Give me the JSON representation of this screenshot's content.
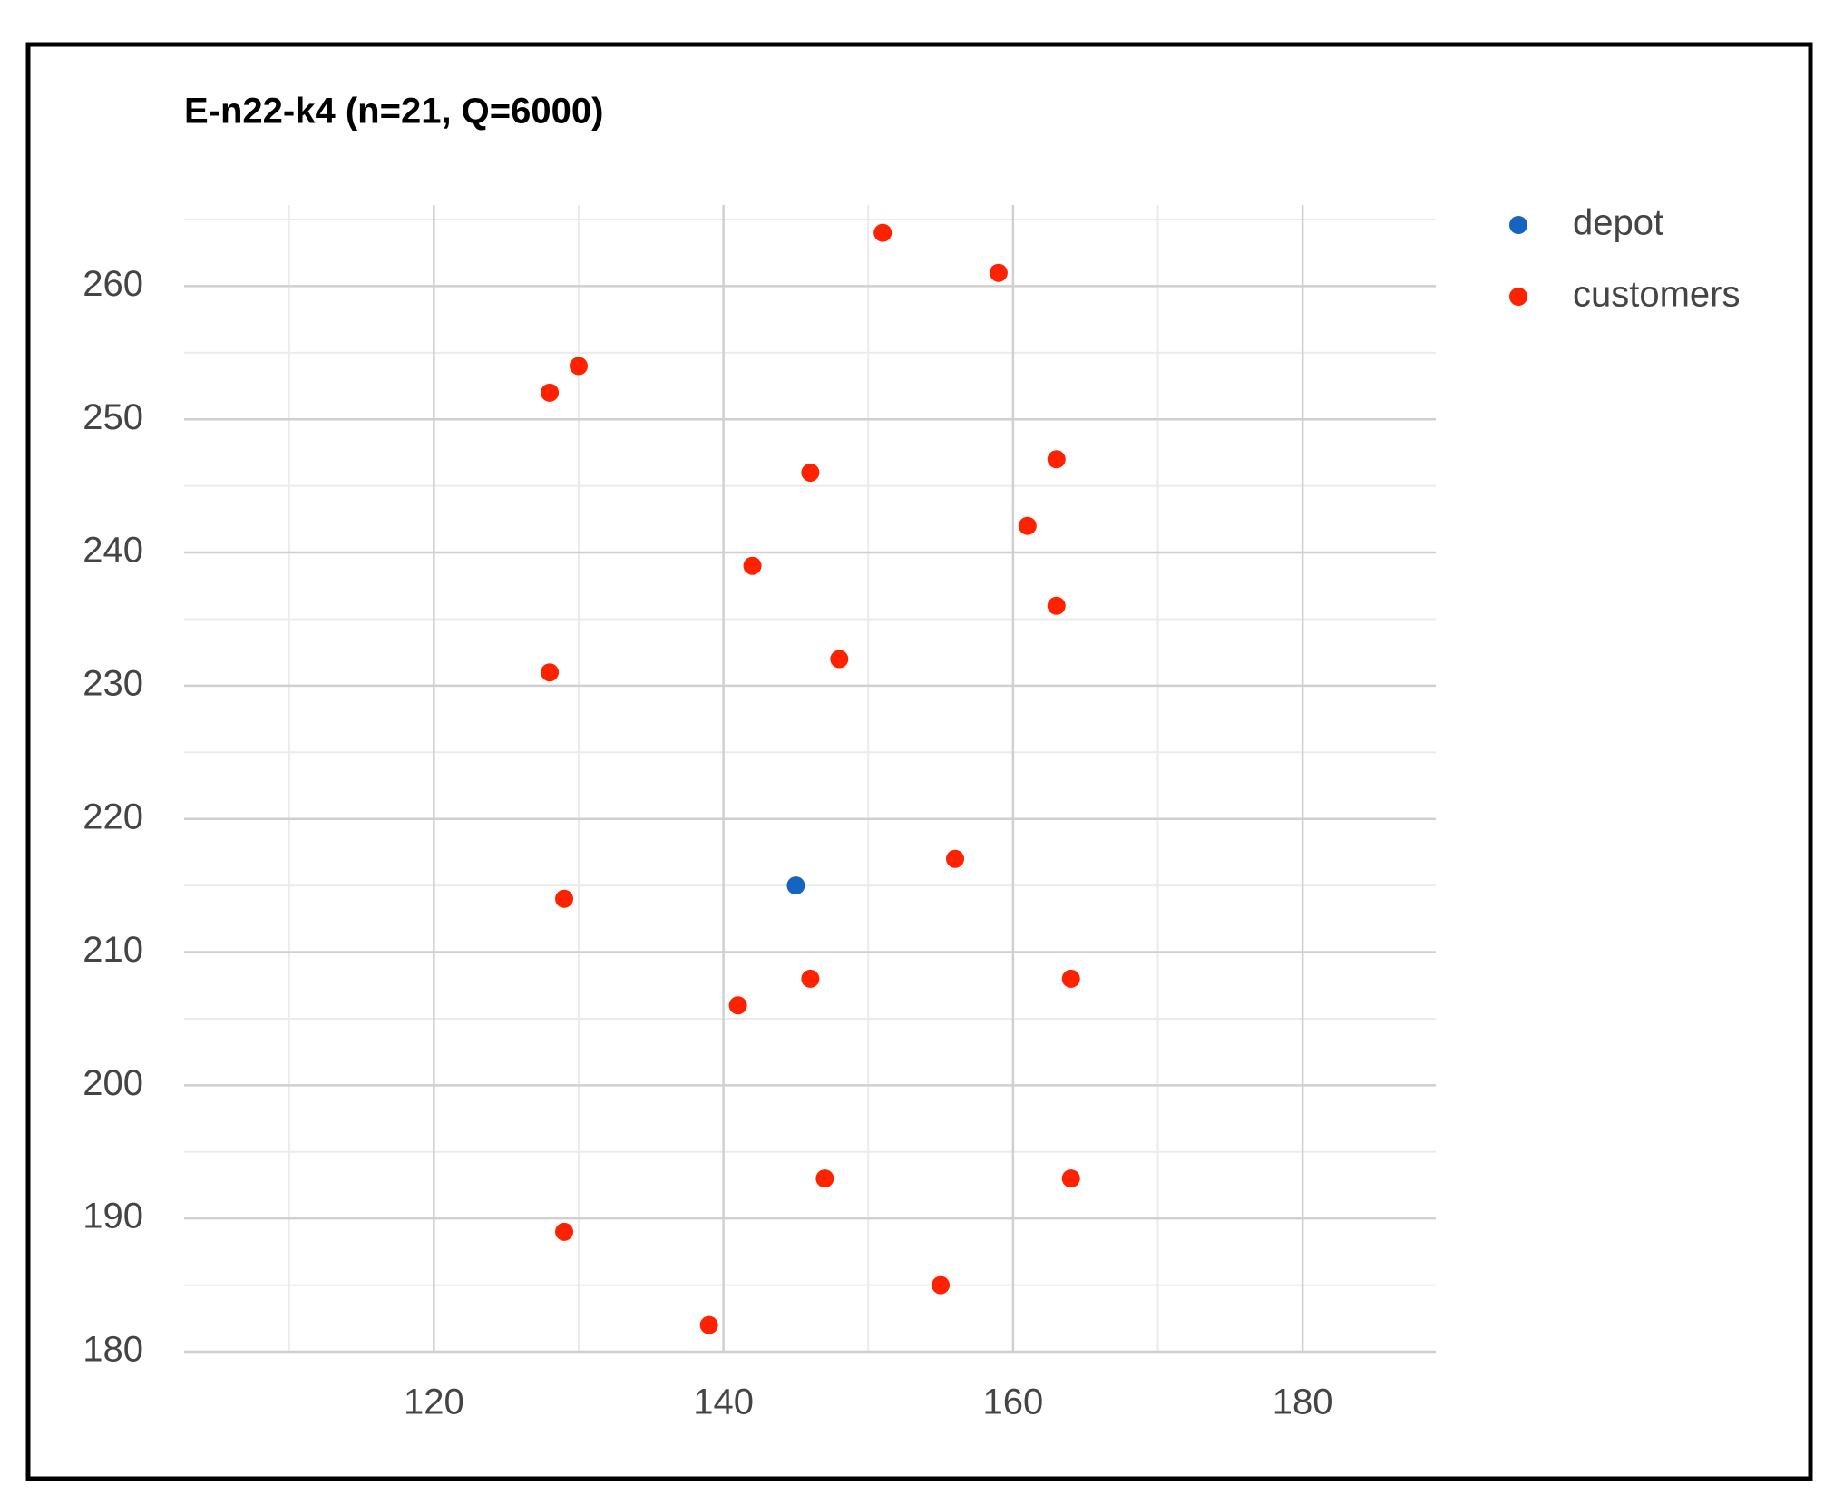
{
  "chart_data": {
    "type": "scatter",
    "title": "E-n22-k4 (n=21, Q=6000)",
    "series": [
      {
        "name": "depot",
        "color": "#1565c0",
        "x": [
          145
        ],
        "values": [
          215
        ]
      },
      {
        "name": "customers",
        "color": "#ff2200",
        "x": [
          151,
          159,
          130,
          128,
          163,
          146,
          161,
          142,
          163,
          148,
          128,
          156,
          129,
          146,
          164,
          141,
          147,
          164,
          129,
          155,
          139
        ],
        "values": [
          264,
          261,
          254,
          252,
          247,
          246,
          242,
          239,
          236,
          232,
          231,
          217,
          214,
          208,
          208,
          206,
          193,
          193,
          189,
          185,
          182
        ]
      }
    ],
    "xlim": [
      102.75,
      189.2
    ],
    "xticks": [
      120,
      140,
      160,
      180
    ],
    "x_minor_grid": [
      110,
      130,
      150,
      170
    ],
    "ylim": [
      180,
      265
    ],
    "yticks": [
      180,
      190,
      200,
      210,
      220,
      230,
      240,
      250,
      260
    ],
    "y_minor_grid": [
      185,
      195,
      205,
      215,
      225,
      235,
      245,
      255,
      265
    ],
    "grid": true,
    "legend": "right"
  }
}
